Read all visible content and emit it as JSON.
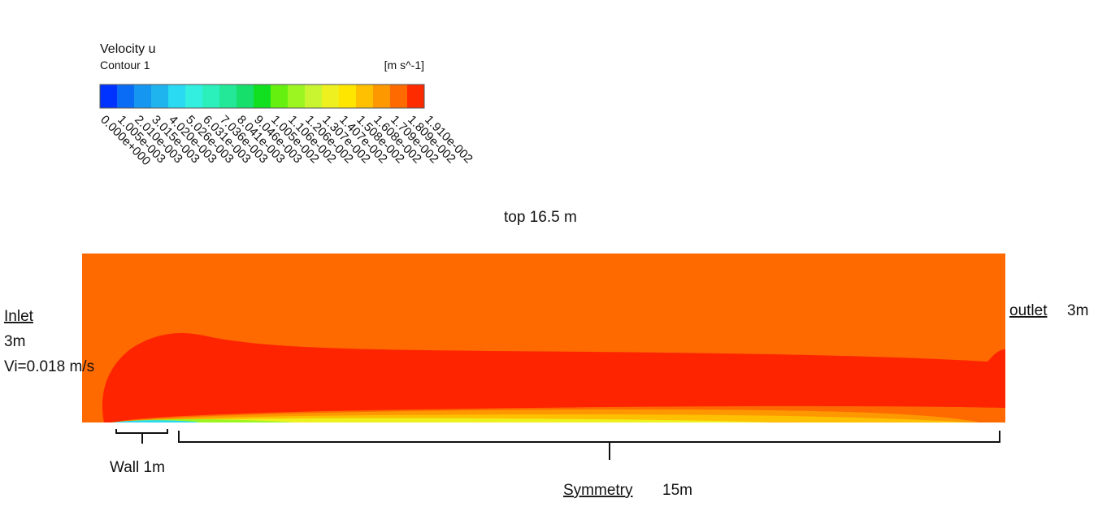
{
  "legend": {
    "title": "Velocity u",
    "subtitle": "Contour 1",
    "unit": "[m s^-1]",
    "labels": [
      "0.000e+000",
      "1.005e-003",
      "2.010e-003",
      "3.015e-003",
      "4.020e-003",
      "5.026e-003",
      "6.031e-003",
      "7.036e-003",
      "8.041e-003",
      "9.046e-003",
      "1.005e-002",
      "1.106e-002",
      "1.206e-002",
      "1.307e-002",
      "1.407e-002",
      "1.508e-002",
      "1.608e-002",
      "1.709e-002",
      "1.809e-002",
      "1.910e-002"
    ],
    "colors": [
      "#0033ff",
      "#0a6cf5",
      "#1596f0",
      "#20b4ee",
      "#2ad9f2",
      "#33efe0",
      "#2cf0bb",
      "#22e898",
      "#17df6c",
      "#10e020",
      "#66f010",
      "#9cf520",
      "#c8f530",
      "#eef020",
      "#fee600",
      "#fec000",
      "#fe9800",
      "#fe6a00",
      "#fe2a00"
    ]
  },
  "annotations": {
    "top": "top  16.5 m",
    "inlet": "Inlet",
    "inlet_height": "3m",
    "inlet_velocity": "Vi=0.018 m/s",
    "outlet": "outlet",
    "outlet_height": "3m",
    "wall": "Wall 1m",
    "symmetry": "Symmetry",
    "symmetry_length": "15m"
  }
}
